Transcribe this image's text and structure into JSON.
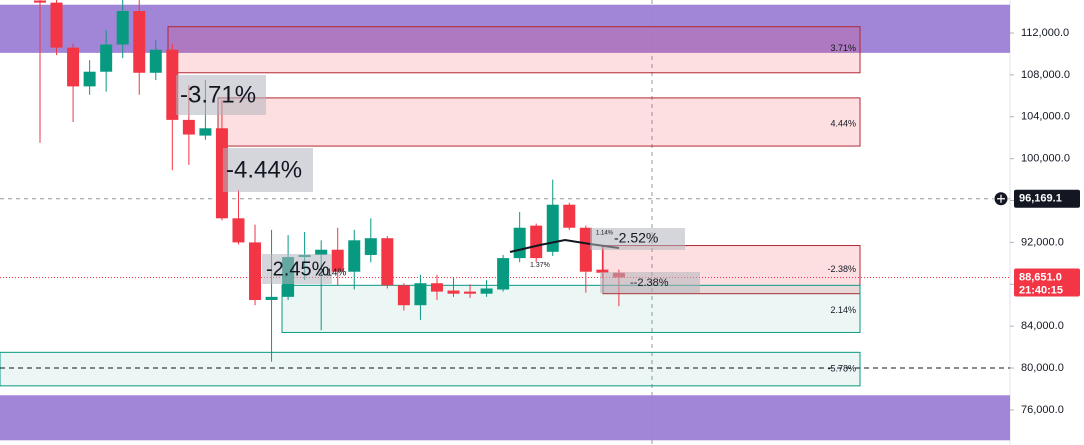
{
  "chart_data": {
    "type": "candlestick",
    "ylim": [
      72650,
      115150
    ],
    "yticks": [
      {
        "value": 76000,
        "label": "76,000.0"
      },
      {
        "value": 80000,
        "label": "80,000.0"
      },
      {
        "value": 84000,
        "label": "84,000.0"
      },
      {
        "value": 88000,
        "label": "88,000.0"
      },
      {
        "value": 92000,
        "label": "92,000.0"
      },
      {
        "value": 96000,
        "label": "96,000.0"
      },
      {
        "value": 100000,
        "label": "100,000.0"
      },
      {
        "value": 104000,
        "label": "104,000.0"
      },
      {
        "value": 108000,
        "label": "108,000.0"
      },
      {
        "value": 112000,
        "label": "112,000.0"
      }
    ],
    "up_color": "#089981",
    "down_color": "#f23645",
    "open": [
      115100,
      114900,
      110600,
      106900,
      108300,
      110900,
      114100,
      108200,
      110400,
      103700,
      102200,
      102900,
      94300,
      92000,
      86500,
      86800,
      90600,
      90800,
      91300,
      89200,
      90800,
      92400,
      87900,
      86000,
      88100,
      87400,
      87300,
      87100,
      87500,
      90500,
      93600,
      91100,
      95600,
      93400,
      89400,
      89100
    ],
    "high": [
      115150,
      115150,
      111000,
      109400,
      112300,
      115150,
      115150,
      111300,
      110900,
      107000,
      107500,
      105600,
      97000,
      93700,
      93200,
      92700,
      93000,
      92200,
      93400,
      93200,
      94300,
      92600,
      88100,
      88900,
      88900,
      88600,
      88000,
      88400,
      90800,
      94900,
      93800,
      98000,
      95800,
      93600,
      91700,
      89400
    ],
    "low": [
      101500,
      109900,
      103500,
      106100,
      106400,
      109600,
      106100,
      107500,
      98900,
      99400,
      101800,
      94100,
      91800,
      86000,
      80600,
      86500,
      88400,
      83600,
      87900,
      87500,
      90100,
      87600,
      85500,
      84600,
      86500,
      86800,
      86700,
      86800,
      87300,
      90100,
      90100,
      90700,
      93200,
      87200,
      88600,
      85900
    ],
    "close": [
      114900,
      110600,
      106900,
      108300,
      110900,
      114100,
      108200,
      110400,
      103700,
      102300,
      102900,
      94300,
      92000,
      86500,
      86800,
      90600,
      90800,
      91300,
      89200,
      92200,
      92400,
      87900,
      86000,
      88100,
      87300,
      87100,
      87100,
      87600,
      90500,
      93400,
      90500,
      95600,
      93400,
      89200,
      89100,
      88651
    ],
    "zones": [
      {
        "from": 110100,
        "to": 114700,
        "color": "#9c7fd6"
      },
      {
        "from": 108200,
        "to": 112600,
        "color": "#f23645",
        "label": "3.71%"
      },
      {
        "from": 101200,
        "to": 105800,
        "color": "#f23645",
        "label": "4.44%"
      },
      {
        "from": 87100,
        "to": 91700,
        "color": "#f23645",
        "label": "-2.38%"
      },
      {
        "from": 83400,
        "to": 87900,
        "color": "#089981",
        "label": "2.14%"
      },
      {
        "from": 78300,
        "to": 81500,
        "color": "#089981",
        "label": "-5.78%"
      },
      {
        "from": 73100,
        "to": 77400,
        "color": "#9c7fd6"
      }
    ],
    "price_lines": [
      {
        "value": 96169.1,
        "label": "96,169.1",
        "color": "#131722"
      },
      {
        "value": 88651,
        "label": "88,651.0",
        "color": "#f23645",
        "countdown": "21:40:15"
      }
    ],
    "annotations": [
      "-3.71%",
      "-4.44%",
      "-2.45%",
      "-2.52%",
      "--2.38%",
      "1.14%",
      "1.37%",
      "2.14%"
    ]
  }
}
